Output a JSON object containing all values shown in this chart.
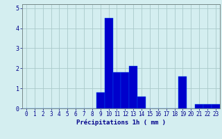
{
  "hours": [
    0,
    1,
    2,
    3,
    4,
    5,
    6,
    7,
    8,
    9,
    10,
    11,
    12,
    13,
    14,
    15,
    16,
    17,
    18,
    19,
    20,
    21,
    22,
    23
  ],
  "values": [
    0,
    0,
    0,
    0,
    0,
    0,
    0,
    0,
    0,
    0.8,
    4.5,
    1.8,
    1.8,
    2.1,
    0.6,
    0,
    0,
    0,
    0,
    1.6,
    0,
    0.2,
    0.2,
    0.2
  ],
  "bar_color": "#0000cc",
  "bar_edge_color": "#0055ee",
  "background_color": "#d4eef0",
  "grid_color": "#aacaca",
  "xlabel": "Précipitations 1h ( mm )",
  "xlabel_color": "#00008b",
  "tick_color": "#00008b",
  "ylim": [
    0,
    5.2
  ],
  "yticks": [
    0,
    1,
    2,
    3,
    4,
    5
  ],
  "xlim": [
    -0.5,
    23.5
  ],
  "tick_fontsize": 5.5,
  "ylabel_fontsize": 6.5
}
